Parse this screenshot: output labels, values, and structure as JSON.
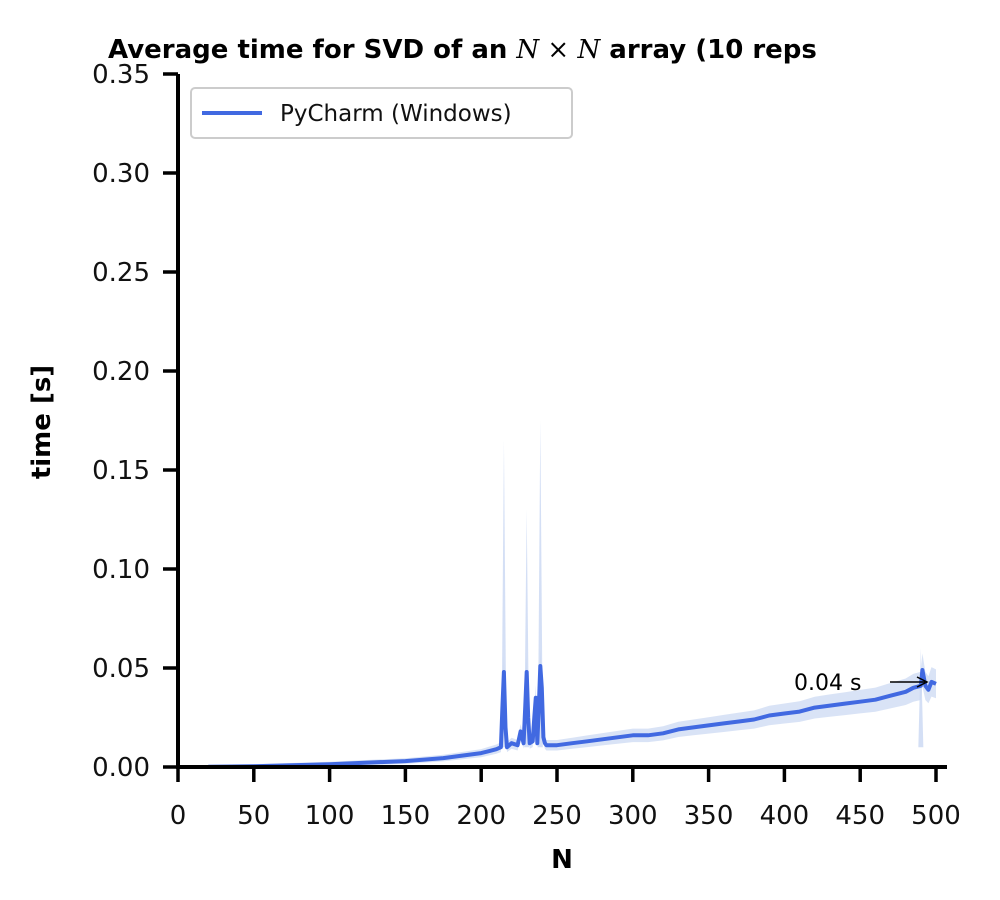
{
  "chart_data": {
    "type": "line",
    "title_prefix": "Average time for SVD of an ",
    "title_math": "N × N",
    "title_suffix": " array (10 reps",
    "xlabel": "N",
    "ylabel": "time [s]",
    "xlim": [
      0,
      505
    ],
    "ylim": [
      0,
      0.35
    ],
    "xticks": [
      0,
      50,
      100,
      150,
      200,
      250,
      300,
      350,
      400,
      450,
      500
    ],
    "xtick_labels": [
      "0",
      "50",
      "100",
      "150",
      "200",
      "250",
      "300",
      "350",
      "400",
      "450",
      "500"
    ],
    "yticks": [
      0,
      0.05,
      0.1,
      0.15,
      0.2,
      0.25,
      0.3,
      0.35
    ],
    "ytick_labels": [
      "0.00",
      "0.05",
      "0.10",
      "0.15",
      "0.20",
      "0.25",
      "0.30",
      "0.35"
    ],
    "grid": false,
    "legend_position": "top-left",
    "series": [
      {
        "name": "PyCharm (Windows)",
        "color": "#4169e1",
        "band_color": "#c9d7f2",
        "x": [
          20,
          50,
          100,
          150,
          175,
          190,
          200,
          205,
          210,
          213,
          214,
          215,
          216,
          217,
          220,
          224,
          226,
          228,
          229,
          230,
          231,
          232,
          234,
          235,
          236,
          237,
          238,
          239,
          240,
          241,
          242,
          243,
          245,
          250,
          260,
          270,
          280,
          290,
          300,
          310,
          320,
          330,
          340,
          350,
          360,
          370,
          380,
          390,
          400,
          410,
          420,
          430,
          440,
          450,
          460,
          470,
          480,
          485,
          490,
          491,
          493,
          495,
          497,
          500
        ],
        "y": [
          0.0001,
          0.0004,
          0.0014,
          0.003,
          0.0045,
          0.006,
          0.007,
          0.008,
          0.009,
          0.01,
          0.03,
          0.048,
          0.02,
          0.01,
          0.012,
          0.011,
          0.018,
          0.012,
          0.03,
          0.048,
          0.025,
          0.012,
          0.013,
          0.025,
          0.035,
          0.012,
          0.03,
          0.051,
          0.04,
          0.015,
          0.012,
          0.011,
          0.011,
          0.011,
          0.012,
          0.013,
          0.014,
          0.015,
          0.016,
          0.016,
          0.017,
          0.019,
          0.02,
          0.021,
          0.022,
          0.023,
          0.024,
          0.026,
          0.027,
          0.028,
          0.03,
          0.031,
          0.032,
          0.033,
          0.034,
          0.036,
          0.038,
          0.04,
          0.041,
          0.049,
          0.041,
          0.039,
          0.043,
          0.042
        ],
        "band_spikes": [
          {
            "x": 215,
            "upper": 0.165
          },
          {
            "x": 230,
            "upper": 0.13
          },
          {
            "x": 239,
            "upper": 0.175
          },
          {
            "x": 490,
            "upper": 0.06
          }
        ]
      }
    ],
    "annotation": {
      "text": "0.04 s",
      "x": 497,
      "y": 0.043
    }
  }
}
